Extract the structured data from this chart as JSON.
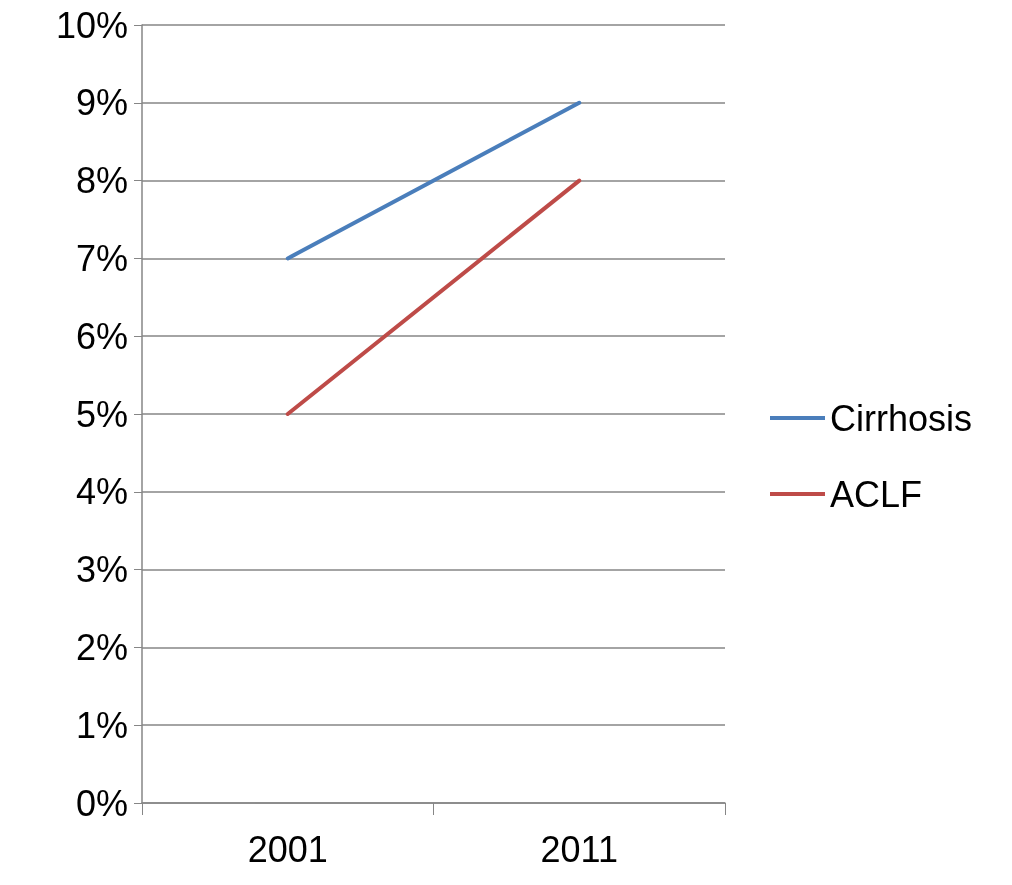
{
  "chart_data": {
    "type": "line",
    "categories": [
      "2001",
      "2011"
    ],
    "series": [
      {
        "name": "Cirrhosis",
        "color": "#4a7ebb",
        "values": [
          7,
          9
        ]
      },
      {
        "name": "ACLF",
        "color": "#be4b48",
        "values": [
          5,
          8
        ]
      }
    ],
    "ylim": [
      0,
      10
    ],
    "yticks": [
      {
        "value": 0,
        "label": "0%"
      },
      {
        "value": 1,
        "label": "1%"
      },
      {
        "value": 2,
        "label": "2%"
      },
      {
        "value": 3,
        "label": "3%"
      },
      {
        "value": 4,
        "label": "4%"
      },
      {
        "value": 5,
        "label": "5%"
      },
      {
        "value": 6,
        "label": "6%"
      },
      {
        "value": 7,
        "label": "7%"
      },
      {
        "value": 8,
        "label": "8%"
      },
      {
        "value": 9,
        "label": "9%"
      },
      {
        "value": 10,
        "label": "10%"
      }
    ],
    "grid": "y",
    "legend": "right",
    "marker": "none"
  }
}
